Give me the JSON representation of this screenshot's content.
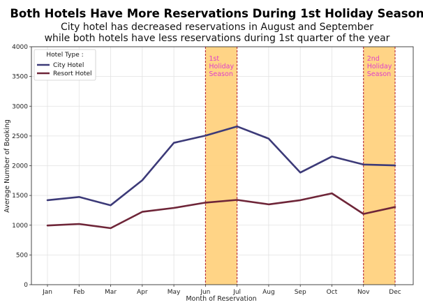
{
  "chart_data": {
    "type": "line",
    "title": "Both Hotels Have More Reservations During 1st Holiday Season",
    "subtitle_lines": [
      "City hotel has decreased reservations in August and September",
      "while both hotels have less reservations during 1st quarter of the year"
    ],
    "xlabel": "Month of Reservation",
    "ylabel": "Average Number of Booking",
    "categories": [
      "Jan",
      "Feb",
      "Mar",
      "Apr",
      "May",
      "Jun",
      "Jul",
      "Aug",
      "Sep",
      "Oct",
      "Nov",
      "Dec"
    ],
    "ylim": [
      0,
      4000
    ],
    "yticks": [
      0,
      500,
      1000,
      1500,
      2000,
      2500,
      3000,
      3500,
      4000
    ],
    "grid": true,
    "legend": {
      "title": "Hotel Type :",
      "placement": "top-left"
    },
    "series": [
      {
        "name": "City Hotel",
        "color": "#3c3a78",
        "values": [
          1420,
          1475,
          1335,
          1755,
          2385,
          2505,
          2660,
          2455,
          1885,
          2155,
          2020,
          2005
        ]
      },
      {
        "name": "Resort Hotel",
        "color": "#6e2538",
        "values": [
          995,
          1020,
          950,
          1225,
          1290,
          1380,
          1425,
          1350,
          1420,
          1535,
          1190,
          1305
        ]
      }
    ],
    "highlight_bands": [
      {
        "label_lines": [
          "1st",
          "Holiday",
          "Season"
        ],
        "from": "Jun",
        "to": "Jul",
        "fill": "#ffd27f",
        "edge": "#b0142a",
        "label_color": "#e040c8"
      },
      {
        "label_lines": [
          "2nd",
          "Holiday",
          "Season"
        ],
        "from": "Nov",
        "to": "Dec",
        "fill": "#ffd27f",
        "edge": "#b0142a",
        "label_color": "#e040c8"
      }
    ]
  }
}
